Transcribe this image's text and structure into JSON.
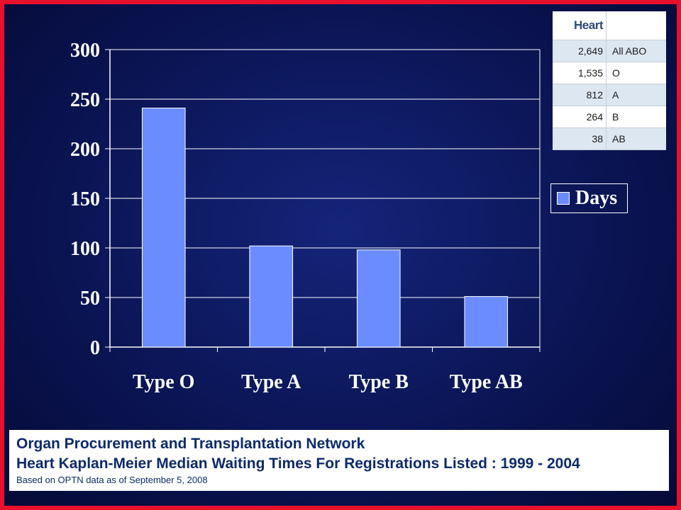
{
  "chart_data": {
    "type": "bar",
    "categories": [
      "Type O",
      "Type A",
      "Type B",
      "Type AB"
    ],
    "series": [
      {
        "name": "Days",
        "values": [
          241,
          102,
          98,
          51
        ]
      }
    ],
    "ylim": [
      0,
      300
    ],
    "yticks": [
      0,
      50,
      100,
      150,
      200,
      250,
      300
    ],
    "title": "",
    "xlabel": "",
    "ylabel": "",
    "grid": true,
    "legend_position": "right",
    "bar_color": "#6b8cff"
  },
  "legend": {
    "label": "Days"
  },
  "abo_table": {
    "header": "Heart",
    "rows": [
      {
        "count": "2,649",
        "group": "All ABO"
      },
      {
        "count": "1,535",
        "group": "O"
      },
      {
        "count": "812",
        "group": "A"
      },
      {
        "count": "264",
        "group": "B"
      },
      {
        "count": "38",
        "group": "AB"
      }
    ]
  },
  "footer": {
    "line1": "Organ Procurement and Transplantation Network",
    "line2": "Heart Kaplan-Meier Median Waiting Times For Registrations Listed : 1999 - 2004",
    "line3": "Based on OPTN data as of September 5, 2008"
  },
  "colors": {
    "frame": "#e8112d",
    "background": "#0b1555",
    "bar": "#6b8cff",
    "footer_text": "#0d2a6b"
  }
}
